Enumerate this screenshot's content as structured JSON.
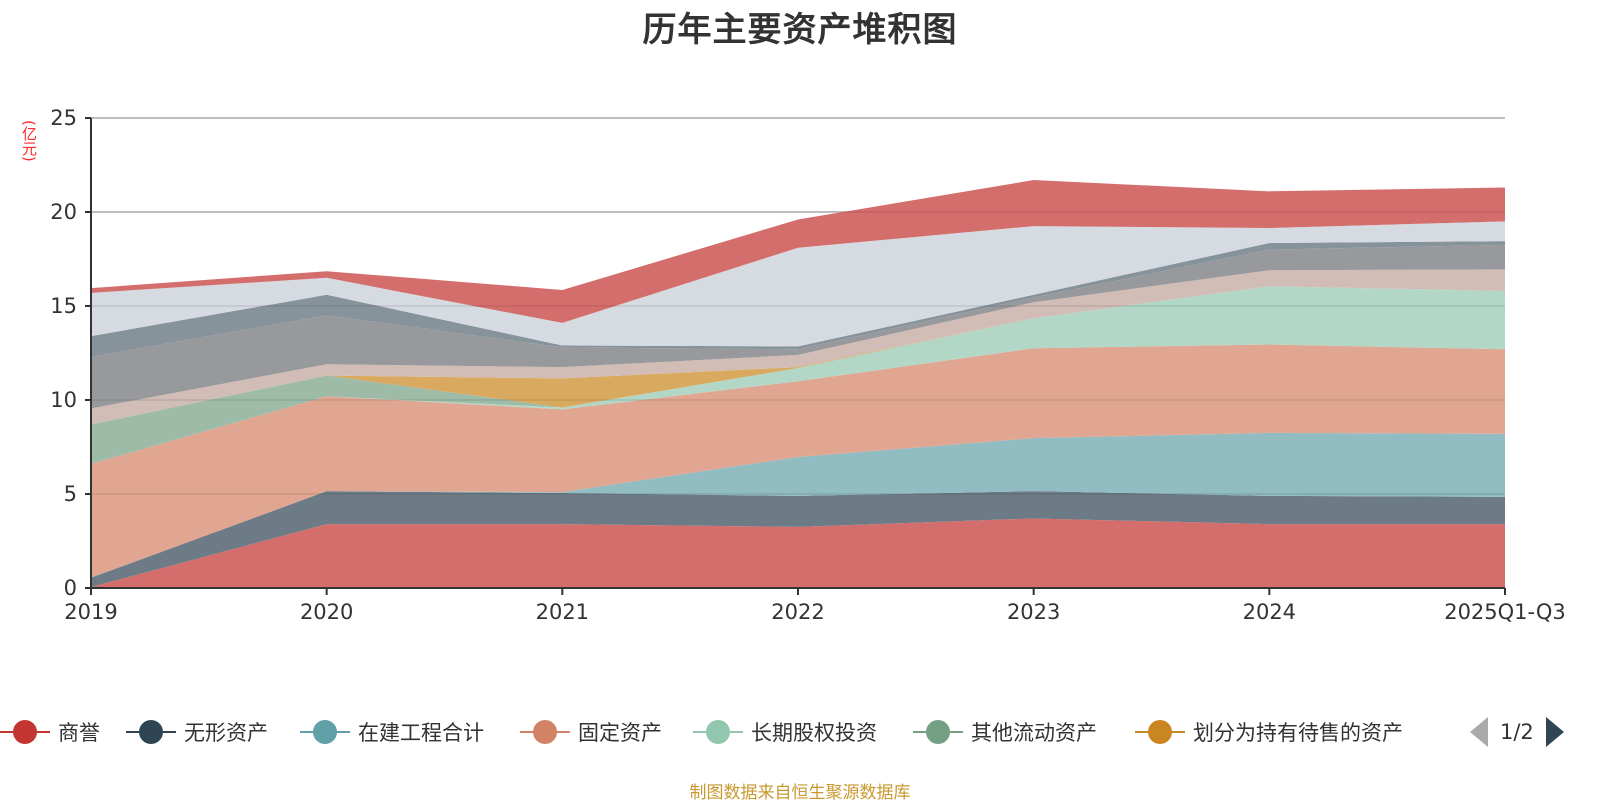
{
  "title": "历年主要资产堆积图",
  "unit_label": "(亿元)",
  "source_note": "制图数据来自恒生聚源数据库",
  "pager": {
    "text": "1/2",
    "prev_label": "上一页",
    "next_label": "下一页"
  },
  "chart_data": {
    "type": "area",
    "stacked": true,
    "title": "历年主要资产堆积图",
    "xlabel": "",
    "ylabel": "(亿元)",
    "ylim": [
      0,
      25
    ],
    "yticks": [
      0,
      5,
      10,
      15,
      20,
      25
    ],
    "grid": true,
    "legend_position": "bottom",
    "categories": [
      "2019",
      "2020",
      "2021",
      "2022",
      "2023",
      "2024",
      "2025Q1-Q3"
    ],
    "series": [
      {
        "name": "商誉",
        "color": "#c23531",
        "fill": "#d46e6c",
        "values": [
          0.05,
          3.4,
          3.4,
          3.25,
          3.7,
          3.4,
          3.4
        ]
      },
      {
        "name": "无形资产",
        "color": "#2f4554",
        "fill": "#6d7b86",
        "values": [
          0.5,
          1.75,
          1.65,
          1.65,
          1.45,
          1.5,
          1.45
        ]
      },
      {
        "name": "在建工程合计",
        "color": "#61a0a8",
        "fill": "#90bcc2",
        "values": [
          0,
          0,
          0.05,
          2.07,
          2.82,
          3.35,
          3.35
        ]
      },
      {
        "name": "固定资产",
        "color": "#d48265",
        "fill": "#e1a692",
        "values": [
          6.05,
          5.05,
          4.4,
          4.03,
          4.78,
          4.7,
          4.5
        ]
      },
      {
        "name": "长期股权投资",
        "color": "#91c7ae",
        "fill": "#b2d7c6",
        "values": [
          0,
          0,
          0.1,
          0.7,
          1.6,
          3.1,
          3.1
        ]
      },
      {
        "name": "其他流动资产",
        "color": "#749f83",
        "fill": "#9dbba7",
        "values": [
          2.1,
          1.1,
          0,
          0,
          0,
          0,
          0
        ]
      },
      {
        "name": "划分为持有待售的资产",
        "color": "#ca8622",
        "fill": "#d9a95f",
        "values": [
          0,
          0,
          1.55,
          0.05,
          0,
          0,
          0
        ]
      },
      {
        "name": "",
        "color": "#bda29a",
        "fill": "#d1bcb6",
        "values": [
          0.85,
          0.6,
          0.6,
          0.65,
          0.85,
          0.85,
          1.15
        ]
      },
      {
        "name": "",
        "color": "#6e7074",
        "fill": "#98999c",
        "values": [
          2.75,
          2.6,
          1.05,
          0.3,
          0.25,
          1.1,
          1.3
        ]
      },
      {
        "name": "",
        "color": "#546570",
        "fill": "#87939b",
        "values": [
          1.1,
          1.1,
          0.1,
          0.15,
          0.15,
          0.35,
          0.2
        ]
      },
      {
        "name": "",
        "color": "#c4ccd3",
        "fill": "#d6dbe1",
        "values": [
          2.3,
          0.9,
          1.2,
          5.25,
          3.65,
          0.8,
          1.05
        ]
      },
      {
        "name": "",
        "color": "#c23531",
        "fill": "#d46e6c",
        "values": [
          0.25,
          0.35,
          1.75,
          1.5,
          2.45,
          1.95,
          1.8
        ]
      }
    ],
    "legend_visible_count": 7
  }
}
